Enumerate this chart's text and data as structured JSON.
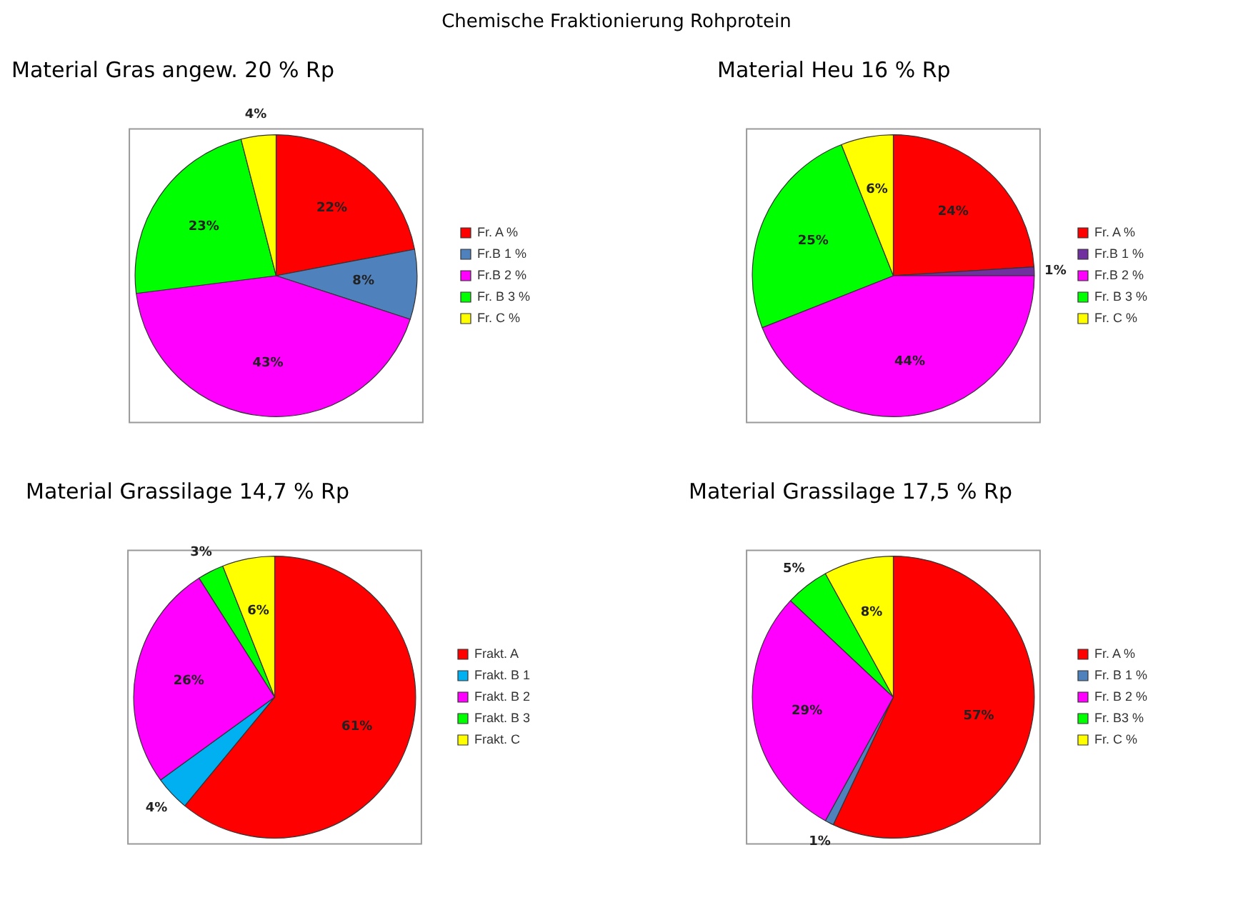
{
  "chart_data": [
    {
      "type": "pie",
      "title": "Material Gras angew. 20 % Rp",
      "annotations": [
        "Chemische Fraktionierung Rohprotein"
      ],
      "categories": [
        "Fr. A %",
        "Fr.B 1 %",
        "Fr.B 2 %",
        "Fr. B 3 %",
        "Fr. C %"
      ],
      "values": [
        22,
        8,
        43,
        23,
        4
      ],
      "value_labels": [
        "22%",
        "8%",
        "43%",
        "23%",
        "4%"
      ],
      "colors": [
        "#ff0000",
        "#4f81bd",
        "#ff00ff",
        "#00ff00",
        "#ffff00"
      ],
      "legend": "right"
    },
    {
      "type": "pie",
      "title": "Material Heu 16 % Rp",
      "categories": [
        "Fr. A %",
        "Fr.B 1 %",
        "Fr.B 2 %",
        "Fr. B 3 %",
        "Fr. C %"
      ],
      "values": [
        24,
        1,
        44,
        25,
        6
      ],
      "value_labels": [
        "24%",
        "1%",
        "44%",
        "25%",
        "6%"
      ],
      "colors": [
        "#ff0000",
        "#7030a0",
        "#ff00ff",
        "#00ff00",
        "#ffff00"
      ],
      "legend": "right"
    },
    {
      "type": "pie",
      "title": "Material Grassilage 14,7 % Rp",
      "categories": [
        "Frakt. A",
        "Frakt. B 1",
        "Frakt. B 2",
        "Frakt. B 3",
        "Frakt. C"
      ],
      "values": [
        61,
        4,
        26,
        3,
        6
      ],
      "value_labels": [
        "61%",
        "4%",
        "26%",
        "3%",
        "6%"
      ],
      "colors": [
        "#ff0000",
        "#00b0f0",
        "#ff00ff",
        "#00ff00",
        "#ffff00"
      ],
      "legend": "right"
    },
    {
      "type": "pie",
      "title": "Material Grassilage 17,5 % Rp",
      "categories": [
        "Fr. A %",
        "Fr. B 1 %",
        "Fr. B 2 %",
        "Fr. B3 %",
        "Fr. C %"
      ],
      "values": [
        57,
        1,
        29,
        5,
        8
      ],
      "value_labels": [
        "57%",
        "1%",
        "29%",
        "5%",
        "8%"
      ],
      "colors": [
        "#ff0000",
        "#4f81bd",
        "#ff00ff",
        "#00ff00",
        "#ffff00"
      ],
      "legend": "right"
    }
  ]
}
